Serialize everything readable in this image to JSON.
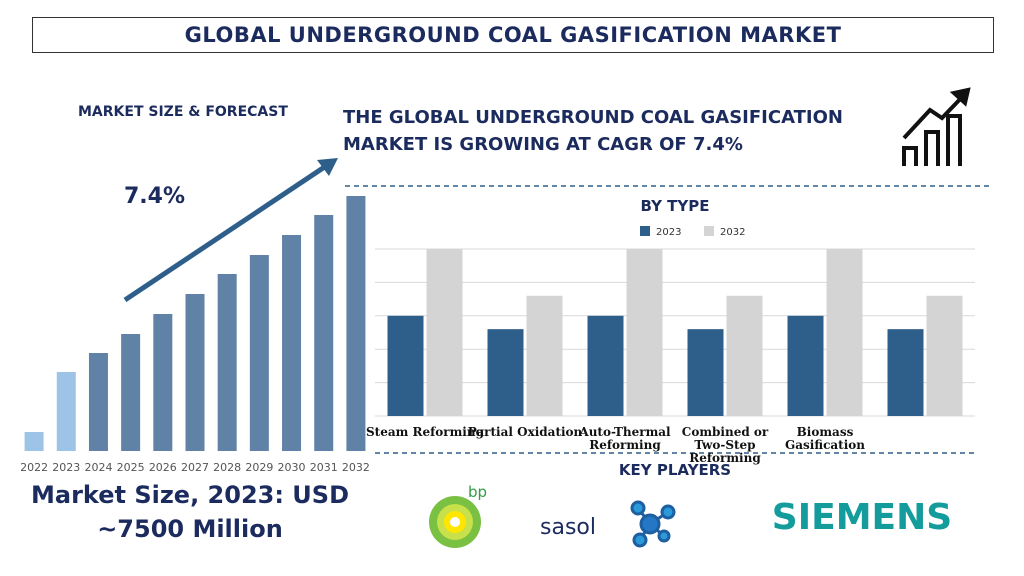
{
  "header": {
    "title": "GLOBAL UNDERGROUND COAL GASIFICATION MARKET"
  },
  "forecast": {
    "label": "MARKET SIZE & FORECAST",
    "cagr": "7.4%",
    "market_size": [
      "Market Size, 2023: USD",
      "~7500 Million"
    ]
  },
  "headline": "THE GLOBAL UNDERGROUND COAL GASIFICATION MARKET IS GROWING AT CAGR OF 7.4%",
  "chart_data": [
    {
      "type": "bar",
      "categories": [
        "2022",
        "2023",
        "2024",
        "2025",
        "2026",
        "2027",
        "2028",
        "2029",
        "2030",
        "2031",
        "2032"
      ],
      "values": [
        19,
        79,
        98,
        117,
        137,
        157,
        177,
        196,
        216,
        236,
        255
      ],
      "colors": [
        "#9dc3e6",
        "#9dc3e6",
        "#5f82a6",
        "#5f82a6",
        "#5f82a6",
        "#5f82a6",
        "#5f82a6",
        "#5f82a6",
        "#5f82a6",
        "#5f82a6",
        "#5f82a6"
      ],
      "ylim": [
        0,
        255
      ]
    },
    {
      "type": "grouped_bar",
      "title": "BY TYPE",
      "categories": [
        "Steam Reforming",
        "Partial Oxidation",
        "Auto-Thermal Reforming",
        "Combined or Two-Step Reforming",
        "Biomass Gasification",
        null
      ],
      "series": [
        {
          "name": "2023",
          "color": "#2e5f8a",
          "values": [
            3.0,
            2.6,
            3.0,
            2.6,
            3.0,
            2.6
          ]
        },
        {
          "name": "2032",
          "color": "#d4d4d4",
          "values": [
            5.0,
            3.6,
            5.0,
            3.6,
            5.0,
            3.6
          ]
        }
      ],
      "ylim": [
        0,
        5
      ],
      "yticks": [
        0,
        1,
        2,
        3,
        4,
        5
      ],
      "grid": true
    }
  ],
  "key_players": {
    "title": "KEY PLAYERS",
    "logos": [
      "bp",
      "sasol",
      "SIEMENS"
    ]
  }
}
